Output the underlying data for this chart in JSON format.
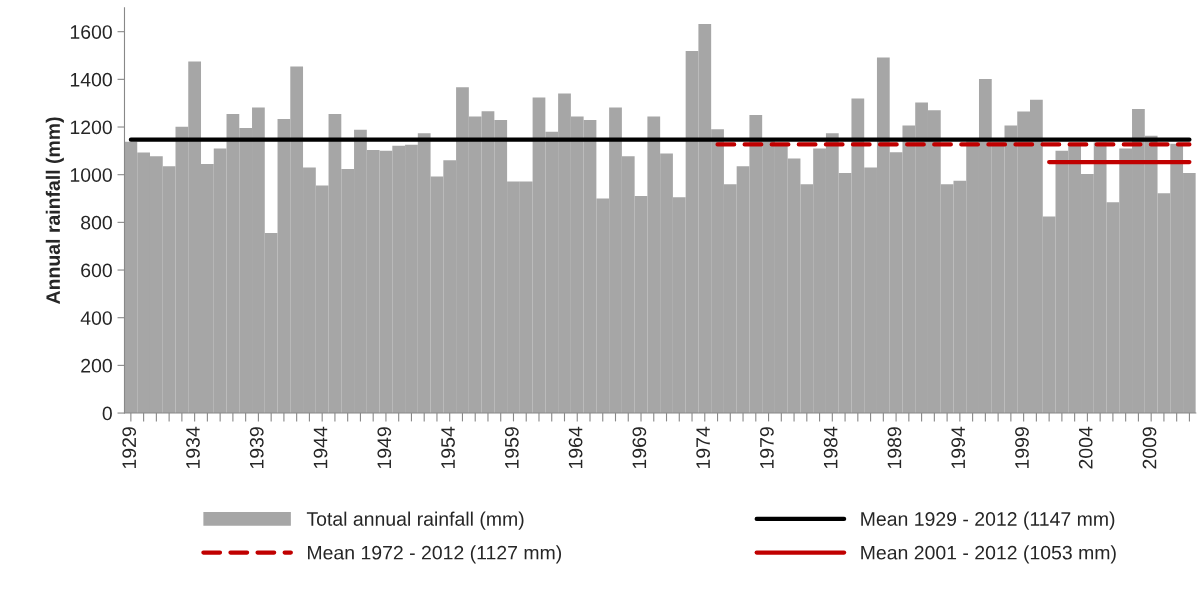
{
  "chart_data": {
    "type": "bar",
    "ylabel": "Annual rainfall (mm)",
    "categories": [
      "1929",
      null,
      null,
      null,
      null,
      "1934",
      null,
      null,
      null,
      null,
      "1939",
      null,
      null,
      null,
      null,
      "1944",
      null,
      null,
      null,
      null,
      "1949",
      null,
      null,
      null,
      null,
      "1954",
      null,
      null,
      null,
      null,
      "1959",
      null,
      null,
      null,
      null,
      "1964",
      null,
      null,
      null,
      null,
      "1969",
      null,
      null,
      null,
      null,
      "1974",
      null,
      null,
      null,
      null,
      "1979",
      null,
      null,
      null,
      null,
      "1984",
      null,
      null,
      null,
      null,
      "1989",
      null,
      null,
      null,
      null,
      "1994",
      null,
      null,
      null,
      null,
      "1999",
      null,
      null,
      null,
      null,
      "2004",
      null,
      null,
      null,
      null,
      "2009",
      null,
      null,
      null
    ],
    "ylim": [
      0,
      1700
    ],
    "yticks": [
      0,
      200,
      400,
      600,
      800,
      1000,
      1200,
      1400,
      1600
    ],
    "grid": false,
    "legend": "bottom",
    "series": [
      {
        "name": "Total annual rainfall (mm)",
        "color": "#a6a6a6",
        "values": [
          1138,
          1093,
          1077,
          1035,
          1201,
          1475,
          1045,
          1110,
          1255,
          1196,
          1282,
          755,
          1234,
          1454,
          1030,
          955,
          1255,
          1024,
          1189,
          1104,
          1100,
          1121,
          1126,
          1174,
          992,
          1061,
          1367,
          1244,
          1266,
          1229,
          971,
          971,
          1324,
          1180,
          1341,
          1244,
          1229,
          900,
          1282,
          1077,
          911,
          1244,
          1089,
          905,
          1519,
          1632,
          1191,
          960,
          1035,
          1250,
          1140,
          1120,
          1068,
          960,
          1110,
          1174,
          1007,
          1320,
          1030,
          1492,
          1094,
          1206,
          1303,
          1270,
          960,
          975,
          1140,
          1401,
          1140,
          1206,
          1265,
          1314,
          825,
          1100,
          1130,
          1003,
          1135,
          884,
          1110,
          1276,
          1163,
          922,
          1130,
          1007
        ]
      },
      {
        "name": "Mean 1929 - 2012 (1147 mm)",
        "type": "line",
        "line_style": "solid",
        "color": "#000000",
        "values": [
          1147,
          1147,
          1147,
          1147,
          1147,
          1147,
          1147,
          1147,
          1147,
          1147,
          1147,
          1147,
          1147,
          1147,
          1147,
          1147,
          1147,
          1147,
          1147,
          1147,
          1147,
          1147,
          1147,
          1147,
          1147,
          1147,
          1147,
          1147,
          1147,
          1147,
          1147,
          1147,
          1147,
          1147,
          1147,
          1147,
          1147,
          1147,
          1147,
          1147,
          1147,
          1147,
          1147,
          1147,
          1147,
          1147,
          1147,
          1147,
          1147,
          1147,
          1147,
          1147,
          1147,
          1147,
          1147,
          1147,
          1147,
          1147,
          1147,
          1147,
          1147,
          1147,
          1147,
          1147,
          1147,
          1147,
          1147,
          1147,
          1147,
          1147,
          1147,
          1147,
          1147,
          1147,
          1147,
          1147,
          1147,
          1147,
          1147,
          1147,
          1147,
          1147,
          1147,
          1147
        ]
      },
      {
        "name": "Mean 1972 - 2012 (1127 mm)",
        "type": "line",
        "line_style": "dashed",
        "color": "#c00000",
        "values": [
          null,
          null,
          null,
          null,
          null,
          null,
          null,
          null,
          null,
          null,
          null,
          null,
          null,
          null,
          null,
          null,
          null,
          null,
          null,
          null,
          null,
          null,
          null,
          null,
          null,
          null,
          null,
          null,
          null,
          null,
          null,
          null,
          null,
          null,
          null,
          null,
          null,
          null,
          null,
          null,
          null,
          null,
          null,
          null,
          null,
          null,
          1127,
          1127,
          1127,
          1127,
          1127,
          1127,
          1127,
          1127,
          1127,
          1127,
          1127,
          1127,
          1127,
          1127,
          1127,
          1127,
          1127,
          1127,
          1127,
          1127,
          1127,
          1127,
          1127,
          1127,
          1127,
          1127,
          1127,
          1127,
          1127,
          1127,
          1127,
          1127,
          1127,
          1127,
          1127,
          1127,
          1127,
          1127
        ]
      },
      {
        "name": "Mean 2001 - 2012 (1053 mm)",
        "type": "line",
        "line_style": "solid",
        "color": "#c00000",
        "values": [
          null,
          null,
          null,
          null,
          null,
          null,
          null,
          null,
          null,
          null,
          null,
          null,
          null,
          null,
          null,
          null,
          null,
          null,
          null,
          null,
          null,
          null,
          null,
          null,
          null,
          null,
          null,
          null,
          null,
          null,
          null,
          null,
          null,
          null,
          null,
          null,
          null,
          null,
          null,
          null,
          null,
          null,
          null,
          null,
          null,
          null,
          null,
          null,
          null,
          null,
          null,
          null,
          null,
          null,
          null,
          null,
          null,
          null,
          null,
          null,
          null,
          null,
          null,
          null,
          null,
          null,
          null,
          null,
          null,
          null,
          null,
          null,
          1053,
          1053,
          1053,
          1053,
          1053,
          1053,
          1053,
          1053,
          1053,
          1053,
          1053,
          1053
        ]
      }
    ]
  }
}
